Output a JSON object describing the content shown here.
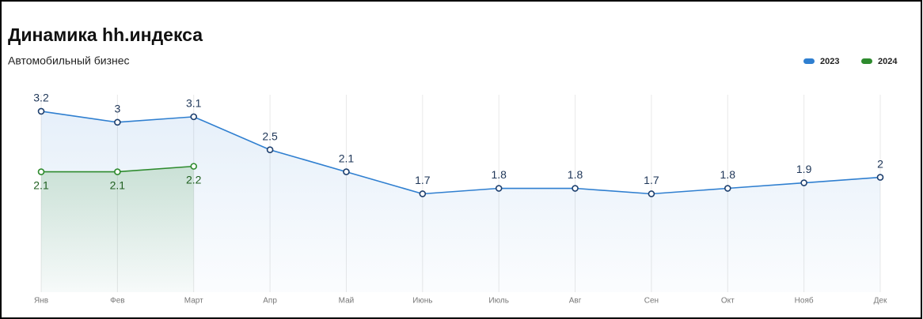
{
  "chart_data": {
    "type": "line",
    "title": "Динамика hh.индекса",
    "subtitle": "Автомобильный бизнес",
    "categories": [
      "Янв",
      "Фев",
      "Март",
      "Апр",
      "Май",
      "Июнь",
      "Июль",
      "Авг",
      "Сен",
      "Окт",
      "Нояб",
      "Дек"
    ],
    "series": [
      {
        "name": "2023",
        "color": "#2f7fd0",
        "values": [
          3.2,
          3,
          3.1,
          2.5,
          2.1,
          1.7,
          1.8,
          1.8,
          1.7,
          1.8,
          1.9,
          2
        ]
      },
      {
        "name": "2024",
        "color": "#2e8b2e",
        "values": [
          2.1,
          2.1,
          2.2,
          null,
          null,
          null,
          null,
          null,
          null,
          null,
          null,
          null
        ]
      }
    ],
    "ylim": [
      0,
      3.5
    ],
    "legend": "top-right"
  }
}
